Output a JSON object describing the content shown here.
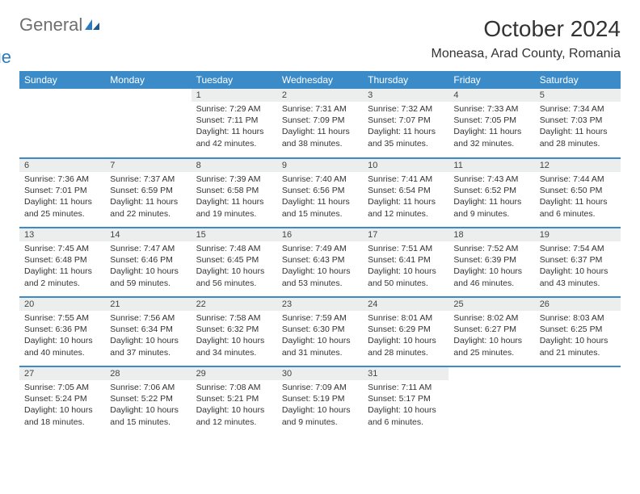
{
  "brand": {
    "text1": "General",
    "text2": "Blue"
  },
  "title": "October 2024",
  "location": "Moneasa, Arad County, Romania",
  "weekdays": [
    "Sunday",
    "Monday",
    "Tuesday",
    "Wednesday",
    "Thursday",
    "Friday",
    "Saturday"
  ],
  "colors": {
    "header_bg": "#3b8bc8",
    "header_text": "#ffffff",
    "daynum_bg": "#eceded",
    "border": "#3b8bc8",
    "text": "#333333",
    "logo_gray": "#6f6f6f",
    "logo_blue": "#2b7bbf"
  },
  "weeks": [
    [
      {
        "num": "",
        "sunrise": "",
        "sunset": "",
        "daylight1": "",
        "daylight2": ""
      },
      {
        "num": "",
        "sunrise": "",
        "sunset": "",
        "daylight1": "",
        "daylight2": ""
      },
      {
        "num": "1",
        "sunrise": "Sunrise: 7:29 AM",
        "sunset": "Sunset: 7:11 PM",
        "daylight1": "Daylight: 11 hours",
        "daylight2": "and 42 minutes."
      },
      {
        "num": "2",
        "sunrise": "Sunrise: 7:31 AM",
        "sunset": "Sunset: 7:09 PM",
        "daylight1": "Daylight: 11 hours",
        "daylight2": "and 38 minutes."
      },
      {
        "num": "3",
        "sunrise": "Sunrise: 7:32 AM",
        "sunset": "Sunset: 7:07 PM",
        "daylight1": "Daylight: 11 hours",
        "daylight2": "and 35 minutes."
      },
      {
        "num": "4",
        "sunrise": "Sunrise: 7:33 AM",
        "sunset": "Sunset: 7:05 PM",
        "daylight1": "Daylight: 11 hours",
        "daylight2": "and 32 minutes."
      },
      {
        "num": "5",
        "sunrise": "Sunrise: 7:34 AM",
        "sunset": "Sunset: 7:03 PM",
        "daylight1": "Daylight: 11 hours",
        "daylight2": "and 28 minutes."
      }
    ],
    [
      {
        "num": "6",
        "sunrise": "Sunrise: 7:36 AM",
        "sunset": "Sunset: 7:01 PM",
        "daylight1": "Daylight: 11 hours",
        "daylight2": "and 25 minutes."
      },
      {
        "num": "7",
        "sunrise": "Sunrise: 7:37 AM",
        "sunset": "Sunset: 6:59 PM",
        "daylight1": "Daylight: 11 hours",
        "daylight2": "and 22 minutes."
      },
      {
        "num": "8",
        "sunrise": "Sunrise: 7:39 AM",
        "sunset": "Sunset: 6:58 PM",
        "daylight1": "Daylight: 11 hours",
        "daylight2": "and 19 minutes."
      },
      {
        "num": "9",
        "sunrise": "Sunrise: 7:40 AM",
        "sunset": "Sunset: 6:56 PM",
        "daylight1": "Daylight: 11 hours",
        "daylight2": "and 15 minutes."
      },
      {
        "num": "10",
        "sunrise": "Sunrise: 7:41 AM",
        "sunset": "Sunset: 6:54 PM",
        "daylight1": "Daylight: 11 hours",
        "daylight2": "and 12 minutes."
      },
      {
        "num": "11",
        "sunrise": "Sunrise: 7:43 AM",
        "sunset": "Sunset: 6:52 PM",
        "daylight1": "Daylight: 11 hours",
        "daylight2": "and 9 minutes."
      },
      {
        "num": "12",
        "sunrise": "Sunrise: 7:44 AM",
        "sunset": "Sunset: 6:50 PM",
        "daylight1": "Daylight: 11 hours",
        "daylight2": "and 6 minutes."
      }
    ],
    [
      {
        "num": "13",
        "sunrise": "Sunrise: 7:45 AM",
        "sunset": "Sunset: 6:48 PM",
        "daylight1": "Daylight: 11 hours",
        "daylight2": "and 2 minutes."
      },
      {
        "num": "14",
        "sunrise": "Sunrise: 7:47 AM",
        "sunset": "Sunset: 6:46 PM",
        "daylight1": "Daylight: 10 hours",
        "daylight2": "and 59 minutes."
      },
      {
        "num": "15",
        "sunrise": "Sunrise: 7:48 AM",
        "sunset": "Sunset: 6:45 PM",
        "daylight1": "Daylight: 10 hours",
        "daylight2": "and 56 minutes."
      },
      {
        "num": "16",
        "sunrise": "Sunrise: 7:49 AM",
        "sunset": "Sunset: 6:43 PM",
        "daylight1": "Daylight: 10 hours",
        "daylight2": "and 53 minutes."
      },
      {
        "num": "17",
        "sunrise": "Sunrise: 7:51 AM",
        "sunset": "Sunset: 6:41 PM",
        "daylight1": "Daylight: 10 hours",
        "daylight2": "and 50 minutes."
      },
      {
        "num": "18",
        "sunrise": "Sunrise: 7:52 AM",
        "sunset": "Sunset: 6:39 PM",
        "daylight1": "Daylight: 10 hours",
        "daylight2": "and 46 minutes."
      },
      {
        "num": "19",
        "sunrise": "Sunrise: 7:54 AM",
        "sunset": "Sunset: 6:37 PM",
        "daylight1": "Daylight: 10 hours",
        "daylight2": "and 43 minutes."
      }
    ],
    [
      {
        "num": "20",
        "sunrise": "Sunrise: 7:55 AM",
        "sunset": "Sunset: 6:36 PM",
        "daylight1": "Daylight: 10 hours",
        "daylight2": "and 40 minutes."
      },
      {
        "num": "21",
        "sunrise": "Sunrise: 7:56 AM",
        "sunset": "Sunset: 6:34 PM",
        "daylight1": "Daylight: 10 hours",
        "daylight2": "and 37 minutes."
      },
      {
        "num": "22",
        "sunrise": "Sunrise: 7:58 AM",
        "sunset": "Sunset: 6:32 PM",
        "daylight1": "Daylight: 10 hours",
        "daylight2": "and 34 minutes."
      },
      {
        "num": "23",
        "sunrise": "Sunrise: 7:59 AM",
        "sunset": "Sunset: 6:30 PM",
        "daylight1": "Daylight: 10 hours",
        "daylight2": "and 31 minutes."
      },
      {
        "num": "24",
        "sunrise": "Sunrise: 8:01 AM",
        "sunset": "Sunset: 6:29 PM",
        "daylight1": "Daylight: 10 hours",
        "daylight2": "and 28 minutes."
      },
      {
        "num": "25",
        "sunrise": "Sunrise: 8:02 AM",
        "sunset": "Sunset: 6:27 PM",
        "daylight1": "Daylight: 10 hours",
        "daylight2": "and 25 minutes."
      },
      {
        "num": "26",
        "sunrise": "Sunrise: 8:03 AM",
        "sunset": "Sunset: 6:25 PM",
        "daylight1": "Daylight: 10 hours",
        "daylight2": "and 21 minutes."
      }
    ],
    [
      {
        "num": "27",
        "sunrise": "Sunrise: 7:05 AM",
        "sunset": "Sunset: 5:24 PM",
        "daylight1": "Daylight: 10 hours",
        "daylight2": "and 18 minutes."
      },
      {
        "num": "28",
        "sunrise": "Sunrise: 7:06 AM",
        "sunset": "Sunset: 5:22 PM",
        "daylight1": "Daylight: 10 hours",
        "daylight2": "and 15 minutes."
      },
      {
        "num": "29",
        "sunrise": "Sunrise: 7:08 AM",
        "sunset": "Sunset: 5:21 PM",
        "daylight1": "Daylight: 10 hours",
        "daylight2": "and 12 minutes."
      },
      {
        "num": "30",
        "sunrise": "Sunrise: 7:09 AM",
        "sunset": "Sunset: 5:19 PM",
        "daylight1": "Daylight: 10 hours",
        "daylight2": "and 9 minutes."
      },
      {
        "num": "31",
        "sunrise": "Sunrise: 7:11 AM",
        "sunset": "Sunset: 5:17 PM",
        "daylight1": "Daylight: 10 hours",
        "daylight2": "and 6 minutes."
      },
      {
        "num": "",
        "sunrise": "",
        "sunset": "",
        "daylight1": "",
        "daylight2": ""
      },
      {
        "num": "",
        "sunrise": "",
        "sunset": "",
        "daylight1": "",
        "daylight2": ""
      }
    ]
  ]
}
